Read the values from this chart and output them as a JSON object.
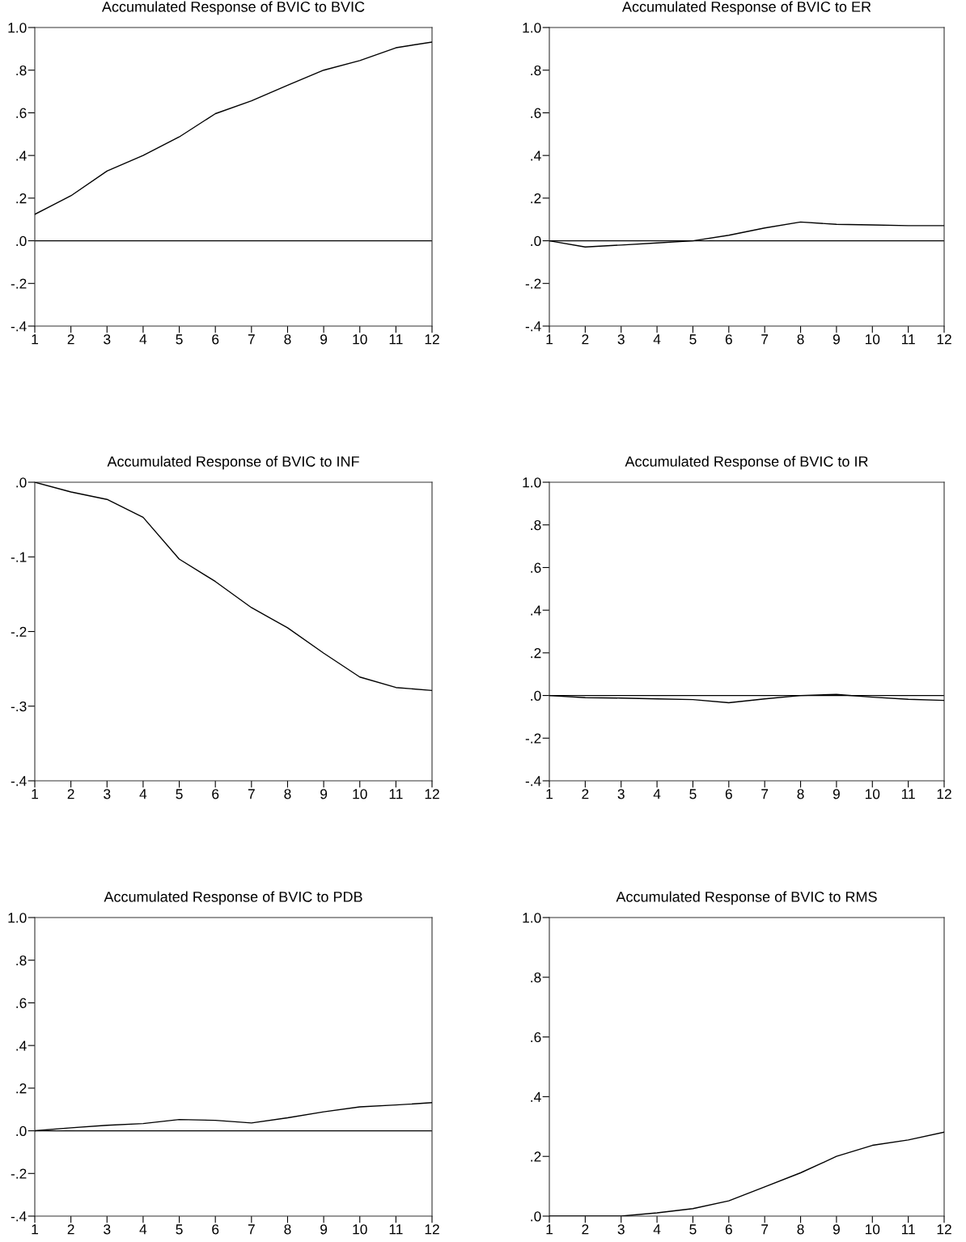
{
  "chart_data": [
    {
      "type": "line",
      "title": "Accumulated Response of BVIC to BVIC",
      "x": [
        1,
        2,
        3,
        4,
        5,
        6,
        7,
        8,
        9,
        10,
        11,
        12
      ],
      "series": [
        {
          "color": "#000000",
          "values": [
            0.124,
            0.211,
            0.327,
            0.4,
            0.487,
            0.596,
            0.656,
            0.729,
            0.8,
            0.845,
            0.905,
            0.932
          ]
        }
      ],
      "xlim": [
        1,
        12
      ],
      "xticks": [
        1,
        2,
        3,
        4,
        5,
        6,
        7,
        8,
        9,
        10,
        11,
        12
      ],
      "ylim": [
        -0.4,
        1.0
      ],
      "yticks": [
        {
          "value": -0.4,
          "label": "-.4"
        },
        {
          "value": -0.2,
          "label": "-.2"
        },
        {
          "value": 0,
          "label": ".0"
        },
        {
          "value": 0.2,
          "label": ".2"
        },
        {
          "value": 0.4,
          "label": ".4"
        },
        {
          "value": 0.6,
          "label": ".6"
        },
        {
          "value": 0.8,
          "label": ".8"
        },
        {
          "value": 1.0,
          "label": "1.0"
        }
      ],
      "ref_lines": [
        {
          "axis": "y",
          "value": 0,
          "color": "#000000"
        }
      ],
      "grid": false
    },
    {
      "type": "line",
      "title": "Accumulated Response of BVIC to ER",
      "x": [
        1,
        2,
        3,
        4,
        5,
        6,
        7,
        8,
        9,
        10,
        11,
        12
      ],
      "series": [
        {
          "color": "#000000",
          "values": [
            0,
            -0.029,
            -0.02,
            -0.01,
            0,
            0.026,
            0.06,
            0.088,
            0.077,
            0.074,
            0.071,
            0.071
          ]
        }
      ],
      "xlim": [
        1,
        12
      ],
      "xticks": [
        1,
        2,
        3,
        4,
        5,
        6,
        7,
        8,
        9,
        10,
        11,
        12
      ],
      "ylim": [
        -0.4,
        1.0
      ],
      "yticks": [
        {
          "value": -0.4,
          "label": "-.4"
        },
        {
          "value": -0.2,
          "label": "-.2"
        },
        {
          "value": 0,
          "label": ".0"
        },
        {
          "value": 0.2,
          "label": ".2"
        },
        {
          "value": 0.4,
          "label": ".4"
        },
        {
          "value": 0.6,
          "label": ".6"
        },
        {
          "value": 0.8,
          "label": ".8"
        },
        {
          "value": 1.0,
          "label": "1.0"
        }
      ],
      "ref_lines": [
        {
          "axis": "y",
          "value": 0,
          "color": "#000000"
        }
      ],
      "grid": false
    },
    {
      "type": "line",
      "title": "Accumulated Response of BVIC to INF",
      "x": [
        1,
        2,
        3,
        4,
        5,
        6,
        7,
        8,
        9,
        10,
        11,
        12
      ],
      "series": [
        {
          "color": "#000000",
          "values": [
            0,
            -0.013,
            -0.023,
            -0.047,
            -0.103,
            -0.133,
            -0.168,
            -0.195,
            -0.229,
            -0.261,
            -0.275,
            -0.279
          ]
        }
      ],
      "xlim": [
        1,
        12
      ],
      "xticks": [
        1,
        2,
        3,
        4,
        5,
        6,
        7,
        8,
        9,
        10,
        11,
        12
      ],
      "ylim": [
        -0.4,
        0
      ],
      "yticks": [
        {
          "value": -0.4,
          "label": "-.4"
        },
        {
          "value": -0.3,
          "label": "-.3"
        },
        {
          "value": -0.2,
          "label": "-.2"
        },
        {
          "value": -0.1,
          "label": "-.1"
        },
        {
          "value": 0,
          "label": ".0"
        }
      ],
      "grid": false
    },
    {
      "type": "line",
      "title": "Accumulated Response of BVIC to IR",
      "x": [
        1,
        2,
        3,
        4,
        5,
        6,
        7,
        8,
        9,
        10,
        11,
        12
      ],
      "series": [
        {
          "color": "#000000",
          "values": [
            0,
            -0.01,
            -0.012,
            -0.016,
            -0.019,
            -0.034,
            -0.016,
            0,
            0.005,
            -0.008,
            -0.018,
            -0.023
          ]
        }
      ],
      "xlim": [
        1,
        12
      ],
      "xticks": [
        1,
        2,
        3,
        4,
        5,
        6,
        7,
        8,
        9,
        10,
        11,
        12
      ],
      "ylim": [
        -0.4,
        1.0
      ],
      "yticks": [
        {
          "value": -0.4,
          "label": "-.4"
        },
        {
          "value": -0.2,
          "label": "-.2"
        },
        {
          "value": 0,
          "label": ".0"
        },
        {
          "value": 0.2,
          "label": ".2"
        },
        {
          "value": 0.4,
          "label": ".4"
        },
        {
          "value": 0.6,
          "label": ".6"
        },
        {
          "value": 0.8,
          "label": ".8"
        },
        {
          "value": 1.0,
          "label": "1.0"
        }
      ],
      "ref_lines": [
        {
          "axis": "y",
          "value": 0,
          "color": "#000000"
        }
      ],
      "grid": false
    },
    {
      "type": "line",
      "title": "Accumulated Response of BVIC to PDB",
      "x": [
        1,
        2,
        3,
        4,
        5,
        6,
        7,
        8,
        9,
        10,
        11,
        12
      ],
      "series": [
        {
          "color": "#000000",
          "values": [
            0,
            0.014,
            0.026,
            0.034,
            0.053,
            0.049,
            0.037,
            0.061,
            0.089,
            0.112,
            0.121,
            0.132
          ]
        }
      ],
      "xlim": [
        1,
        12
      ],
      "xticks": [
        1,
        2,
        3,
        4,
        5,
        6,
        7,
        8,
        9,
        10,
        11,
        12
      ],
      "ylim": [
        -0.4,
        1.0
      ],
      "yticks": [
        {
          "value": -0.4,
          "label": "-.4"
        },
        {
          "value": -0.2,
          "label": "-.2"
        },
        {
          "value": 0,
          "label": ".0"
        },
        {
          "value": 0.2,
          "label": ".2"
        },
        {
          "value": 0.4,
          "label": ".4"
        },
        {
          "value": 0.6,
          "label": ".6"
        },
        {
          "value": 0.8,
          "label": ".8"
        },
        {
          "value": 1.0,
          "label": "1.0"
        }
      ],
      "ref_lines": [
        {
          "axis": "y",
          "value": 0,
          "color": "#000000"
        }
      ],
      "grid": false
    },
    {
      "type": "line",
      "title": "Accumulated Response of BVIC to RMS",
      "x": [
        1,
        2,
        3,
        4,
        5,
        6,
        7,
        8,
        9,
        10,
        11,
        12
      ],
      "series": [
        {
          "color": "#000000",
          "values": [
            0,
            0,
            0,
            0.011,
            0.025,
            0.051,
            0.098,
            0.145,
            0.2,
            0.237,
            0.255,
            0.281
          ]
        }
      ],
      "xlim": [
        1,
        12
      ],
      "xticks": [
        1,
        2,
        3,
        4,
        5,
        6,
        7,
        8,
        9,
        10,
        11,
        12
      ],
      "ylim": [
        0,
        1.0
      ],
      "yticks": [
        {
          "value": 0,
          "label": ".0"
        },
        {
          "value": 0.2,
          "label": ".2"
        },
        {
          "value": 0.4,
          "label": ".4"
        },
        {
          "value": 0.6,
          "label": ".6"
        },
        {
          "value": 0.8,
          "label": ".8"
        },
        {
          "value": 1.0,
          "label": "1.0"
        }
      ],
      "grid": false
    }
  ]
}
